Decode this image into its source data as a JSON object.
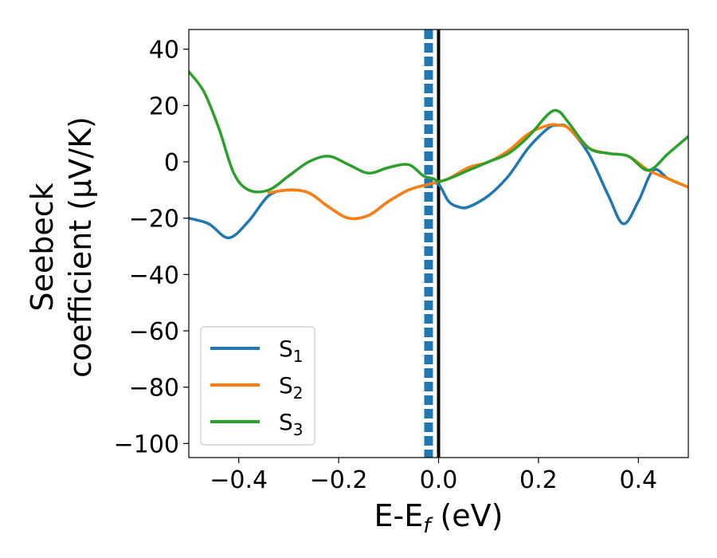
{
  "chart_data": {
    "type": "line",
    "xlabel": {
      "main": "E-E",
      "sub": "f",
      "unit": " (eV)"
    },
    "ylabel": {
      "line1": "Seebeck",
      "line2": "coefficient  (μV/K)"
    },
    "xlim": [
      -0.5,
      0.5
    ],
    "ylim": [
      -105,
      47
    ],
    "xticks": [
      -0.4,
      -0.2,
      0.0,
      0.2,
      0.4
    ],
    "xtick_labels": [
      "−0.4",
      "−0.2",
      "0.0",
      "0.2",
      "0.4"
    ],
    "yticks": [
      40,
      20,
      0,
      -20,
      -40,
      -60,
      -80,
      -100
    ],
    "ytick_labels": [
      "40",
      "20",
      "0",
      "−20",
      "−40",
      "−60",
      "−80",
      "−100"
    ],
    "grid": false,
    "legend_position": "lower-left",
    "vlines": [
      {
        "x": 0.0,
        "style": "solid",
        "color": "#000000"
      },
      {
        "x": -0.02,
        "style": "dashed",
        "color": "#1f77b4"
      }
    ],
    "series": [
      {
        "name": "S",
        "sub": "1",
        "color": "#1f77b4",
        "x": [
          -0.5,
          -0.46,
          -0.42,
          -0.38,
          -0.34,
          -0.3,
          -0.26,
          -0.22,
          -0.18,
          -0.14,
          -0.1,
          -0.06,
          -0.02,
          0.0,
          0.02,
          0.04,
          0.06,
          0.1,
          0.14,
          0.18,
          0.22,
          0.24,
          0.26,
          0.3,
          0.34,
          0.37,
          0.4,
          0.43,
          0.46,
          0.5
        ],
        "y": [
          -20,
          -22,
          -27,
          -21,
          -12,
          -10,
          -11,
          -16,
          -20,
          -19,
          -14,
          -10,
          -8,
          -8,
          -14,
          -16,
          -16,
          -12,
          -5,
          5,
          12,
          13,
          12,
          3,
          -12,
          -22,
          -14,
          -3,
          -6,
          -9
        ]
      },
      {
        "name": "S",
        "sub": "2",
        "color": "#ff7f0e",
        "x": [
          -0.34,
          -0.3,
          -0.26,
          -0.22,
          -0.18,
          -0.14,
          -0.1,
          -0.06,
          -0.02,
          0.0,
          0.02,
          0.06,
          0.1,
          0.14,
          0.18,
          0.22,
          0.24,
          0.26,
          0.3,
          0.34,
          0.38,
          0.42,
          0.46,
          0.5
        ],
        "y": [
          -11,
          -10,
          -11,
          -16,
          -20,
          -19,
          -14,
          -10,
          -8,
          -7,
          -6,
          -2,
          0,
          4,
          10,
          13,
          13,
          12,
          5,
          3,
          2,
          -3,
          -6,
          -9
        ]
      },
      {
        "name": "S",
        "sub": "3",
        "color": "#2ca02c",
        "x": [
          -0.5,
          -0.47,
          -0.44,
          -0.41,
          -0.38,
          -0.34,
          -0.3,
          -0.26,
          -0.22,
          -0.18,
          -0.14,
          -0.1,
          -0.06,
          -0.03,
          -0.01,
          0.0,
          0.02,
          0.06,
          0.1,
          0.14,
          0.18,
          0.22,
          0.24,
          0.26,
          0.3,
          0.34,
          0.38,
          0.42,
          0.46,
          0.5
        ],
        "y": [
          32,
          25,
          12,
          -4,
          -10,
          -10,
          -5,
          0,
          2,
          -1,
          -4,
          -2,
          -1,
          -5,
          -6,
          -7,
          -6,
          -3,
          0,
          3,
          9,
          17,
          18,
          14,
          5,
          3,
          2,
          -3,
          3,
          9
        ]
      }
    ]
  }
}
